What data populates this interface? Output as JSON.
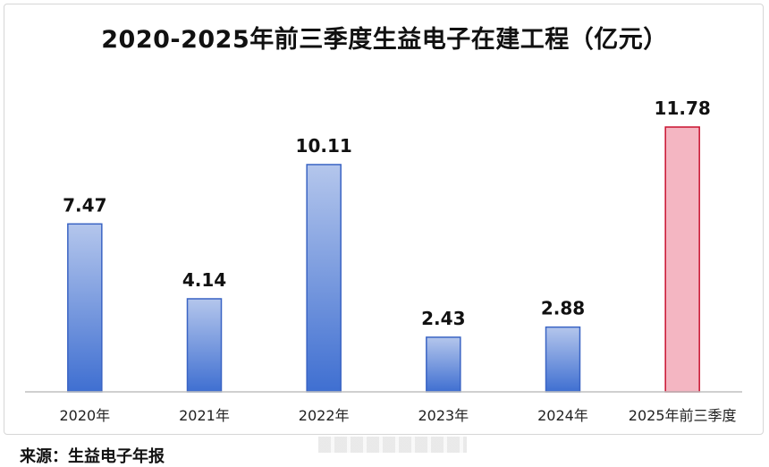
{
  "chart_data": {
    "type": "bar",
    "title": "2020-2025年前三季度生益电子在建工程（亿元）",
    "categories": [
      "2020年",
      "2021年",
      "2022年",
      "2023年",
      "2024年",
      "2025年前三季度"
    ],
    "values": [
      7.47,
      4.14,
      10.11,
      2.43,
      2.88,
      11.78
    ],
    "value_labels": [
      "7.47",
      "4.14",
      "10.11",
      "2.43",
      "2.88",
      "11.78"
    ],
    "highlight_index": 5,
    "colors": {
      "bar_top": "#b4c6ec",
      "bar_bottom": "#3f6fd1",
      "bar_border": "#3a64c4",
      "highlight_fill": "#f4b6c2",
      "highlight_border": "#c8102e"
    },
    "ylim": [
      0,
      11.78
    ],
    "grid": false,
    "legend": "none"
  },
  "source": "来源：生益电子年报"
}
